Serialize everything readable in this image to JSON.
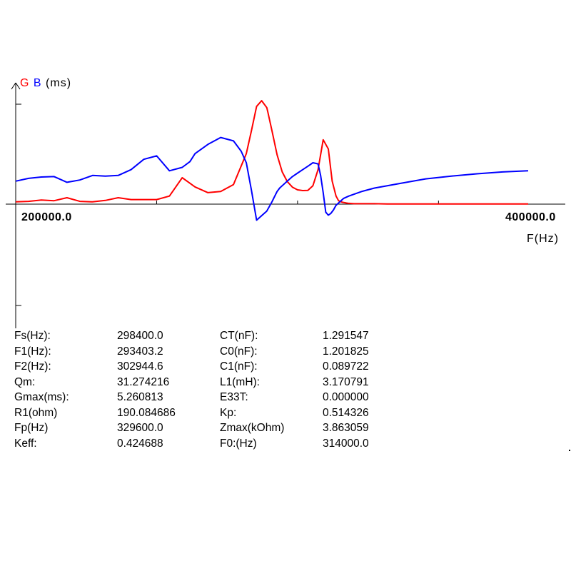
{
  "legend": {
    "g": "G",
    "b": "B",
    "unit": "(ms)"
  },
  "colors": {
    "G": "#ff0000",
    "B": "#0000ff",
    "axis": "#000000"
  },
  "chart_data": {
    "type": "line",
    "xlabel": "F(Hz)",
    "xtick_labels": [
      "200000.0",
      "400000.0"
    ],
    "xlim": [
      200000,
      400000
    ],
    "ylim": [
      -2,
      4.5
    ],
    "series": [
      {
        "name": "G",
        "x": [
          200000,
          205000,
          210000,
          215000,
          220000,
          225000,
          230000,
          235000,
          240000,
          245000,
          250000,
          255000,
          260000,
          265000,
          270000,
          275000,
          280000,
          285000,
          290000,
          292000,
          294000,
          296000,
          298000,
          298400,
          300000,
          302000,
          304000,
          306000,
          308000,
          310000,
          312000,
          314000,
          316000,
          318000,
          320000,
          322000,
          323500,
          325000,
          326000,
          327500,
          329000,
          329600,
          330500,
          332000,
          334000,
          336000,
          338000,
          340000,
          345000,
          350000,
          360000,
          370000,
          380000,
          390000,
          400000
        ],
        "values": [
          0.1,
          0.12,
          0.18,
          0.15,
          0.28,
          0.12,
          0.1,
          0.16,
          0.28,
          0.2,
          0.2,
          0.2,
          0.35,
          1.15,
          0.75,
          0.5,
          0.55,
          0.85,
          2.2,
          3.2,
          4.25,
          4.5,
          4.2,
          4.0,
          3.2,
          2.15,
          1.4,
          0.98,
          0.74,
          0.62,
          0.59,
          0.6,
          0.8,
          1.5,
          2.8,
          2.4,
          1.0,
          0.35,
          0.15,
          0.08,
          0.05,
          0.04,
          0.03,
          0.02,
          0.02,
          0.02,
          0.02,
          0.02,
          0.01,
          0.01,
          0.01,
          0.01,
          0.01,
          0.01,
          0.01
        ]
      },
      {
        "name": "B",
        "x": [
          200000,
          205000,
          210000,
          215000,
          220000,
          225000,
          230000,
          235000,
          240000,
          245000,
          250000,
          255000,
          260000,
          265000,
          268000,
          270000,
          275000,
          280000,
          285000,
          288000,
          290000,
          292000,
          294000,
          296000,
          298000,
          300000,
          302000,
          303000,
          304000,
          306000,
          308000,
          310000,
          312000,
          314000,
          316000,
          318000,
          319000,
          320000,
          321000,
          322000,
          323000,
          324000,
          325000,
          328000,
          330000,
          335000,
          340000,
          350000,
          360000,
          370000,
          380000,
          390000,
          400000
        ],
        "values": [
          1.0,
          1.12,
          1.18,
          1.2,
          0.95,
          1.05,
          1.25,
          1.22,
          1.25,
          1.5,
          1.95,
          2.1,
          1.45,
          1.6,
          1.85,
          2.2,
          2.6,
          2.9,
          2.75,
          2.3,
          1.8,
          0.6,
          -0.7,
          -0.5,
          -0.3,
          0.1,
          0.55,
          0.7,
          0.8,
          1.0,
          1.2,
          1.35,
          1.5,
          1.65,
          1.8,
          1.75,
          1.25,
          0.5,
          -0.35,
          -0.48,
          -0.4,
          -0.25,
          -0.05,
          0.25,
          0.35,
          0.55,
          0.7,
          0.9,
          1.1,
          1.22,
          1.32,
          1.4,
          1.45
        ]
      }
    ]
  },
  "params": {
    "rows": [
      [
        "Fs(Hz):",
        "298400.0",
        "CT(nF):",
        "1.291547"
      ],
      [
        "F1(Hz):",
        "293403.2",
        "C0(nF):",
        "1.201825"
      ],
      [
        "F2(Hz):",
        "302944.6",
        "C1(nF):",
        "0.089722"
      ],
      [
        "Qm:",
        "31.274216",
        "L1(mH):",
        "3.170791"
      ],
      [
        "Gmax(ms):",
        "5.260813",
        "E33T:",
        "0.000000"
      ],
      [
        "R1(ohm)",
        "190.084686",
        "Kp:",
        "0.514326"
      ],
      [
        "Fp(Hz)",
        "329600.0",
        "Zmax(kOhm)",
        "3.863059"
      ],
      [
        "Keff:",
        "0.424688",
        "F0:(Hz)",
        "314000.0"
      ]
    ]
  }
}
